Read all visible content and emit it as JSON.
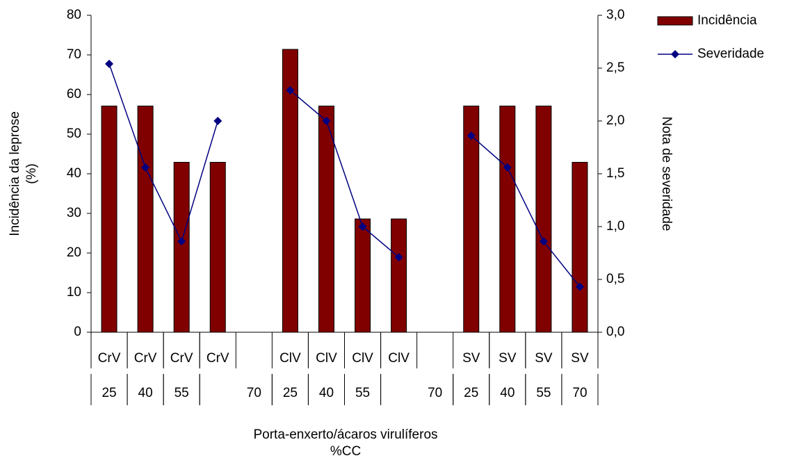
{
  "chart_data": {
    "type": "bar_line",
    "categories": [
      "CrV",
      "CrV",
      "CrV",
      "CrV",
      null,
      "ClV",
      "ClV",
      "ClV",
      "ClV",
      null,
      "SV",
      "SV",
      "SV",
      "SV"
    ],
    "subcategories": [
      "25",
      "40",
      "55",
      "70",
      null,
      "25",
      "40",
      "55",
      "70",
      null,
      "25",
      "40",
      "55",
      "70"
    ],
    "series": [
      {
        "name": "Incidência",
        "color": "#800000",
        "type": "bar",
        "values": [
          57.1,
          57.1,
          42.9,
          42.9,
          null,
          71.4,
          57.1,
          28.6,
          28.6,
          null,
          57.1,
          57.1,
          57.1,
          42.9
        ]
      },
      {
        "name": "Severidade",
        "color": "#000080",
        "type": "line",
        "axis": "y2",
        "values": [
          2.54,
          1.56,
          0.86,
          2.0,
          null,
          2.29,
          2.0,
          1.0,
          0.71,
          null,
          1.86,
          1.56,
          0.86,
          0.43
        ]
      }
    ],
    "ylim": [
      0,
      80
    ],
    "yticks": [
      0,
      10,
      20,
      30,
      40,
      50,
      60,
      70,
      80
    ],
    "y2lim": [
      0,
      3
    ],
    "y2ticks": [
      {
        "value": 0,
        "label": "0,0"
      },
      {
        "value": 0.5,
        "label": "0,5"
      },
      {
        "value": 1,
        "label": "1,0"
      },
      {
        "value": 1.5,
        "label": "1,5"
      },
      {
        "value": 2,
        "label": "2,0"
      },
      {
        "value": 2.5,
        "label": "2,5"
      },
      {
        "value": 3,
        "label": "3,0"
      }
    ],
    "y_label": [
      "Incidência da leprose",
      "(%)"
    ],
    "y2_label": "Nota de severidade",
    "x_label": [
      "Porta-enxerto/ácaros virulíferos",
      "%CC"
    ],
    "legend": "top-right"
  }
}
